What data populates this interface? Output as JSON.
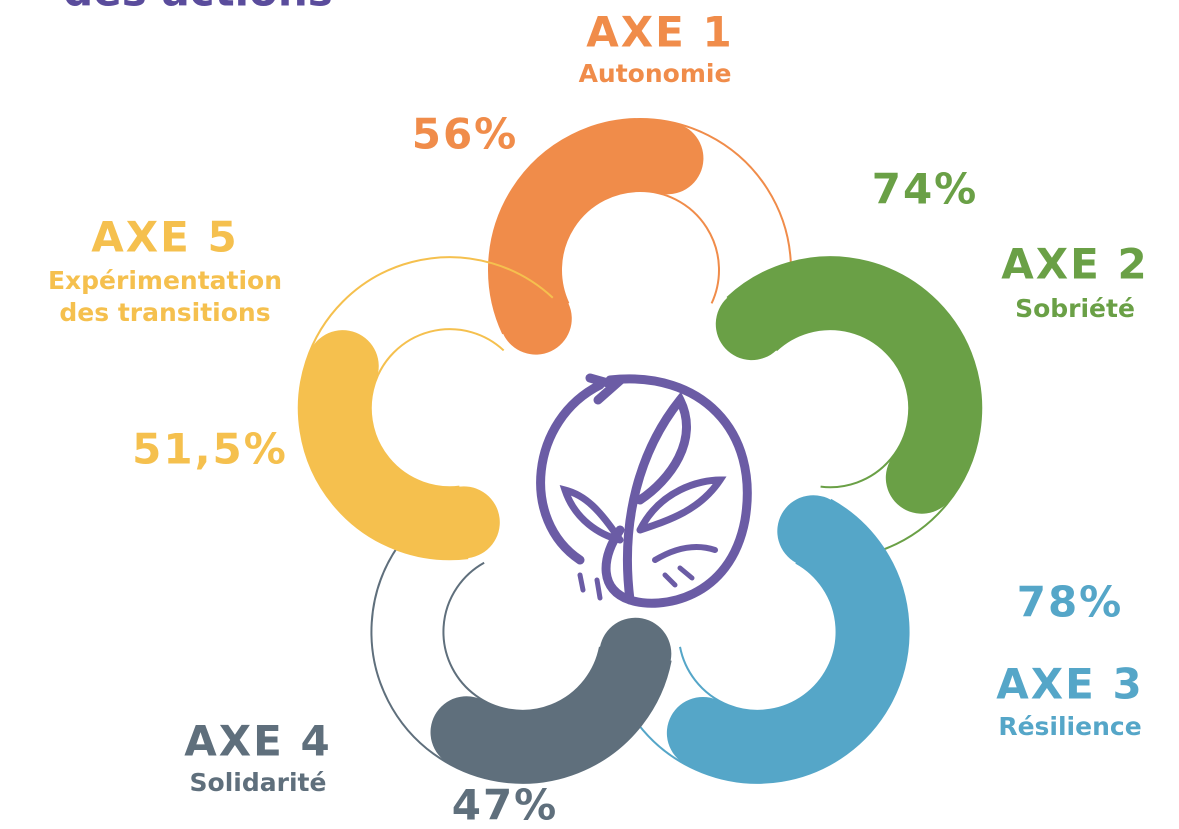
{
  "chart_data": {
    "type": "petal",
    "title": "des actions",
    "categories": [
      "AXE 1",
      "AXE 2",
      "AXE 3",
      "AXE 4",
      "AXE 5"
    ],
    "subtitles": [
      [
        "Autonomie"
      ],
      [
        "Sobriété"
      ],
      [
        "Résilience"
      ],
      [
        "Solidarité"
      ],
      [
        "Expérimentation",
        "des transitions"
      ]
    ],
    "values": [
      56,
      74,
      78,
      47,
      51.5
    ],
    "value_labels": [
      "56%",
      "74%",
      "78%",
      "47%",
      "51,5%"
    ],
    "colors": [
      "#f08c4a",
      "#6aa046",
      "#55a6c8",
      "#5f6f7c",
      "#f5c04e"
    ],
    "ylim": [
      0,
      100
    ]
  }
}
